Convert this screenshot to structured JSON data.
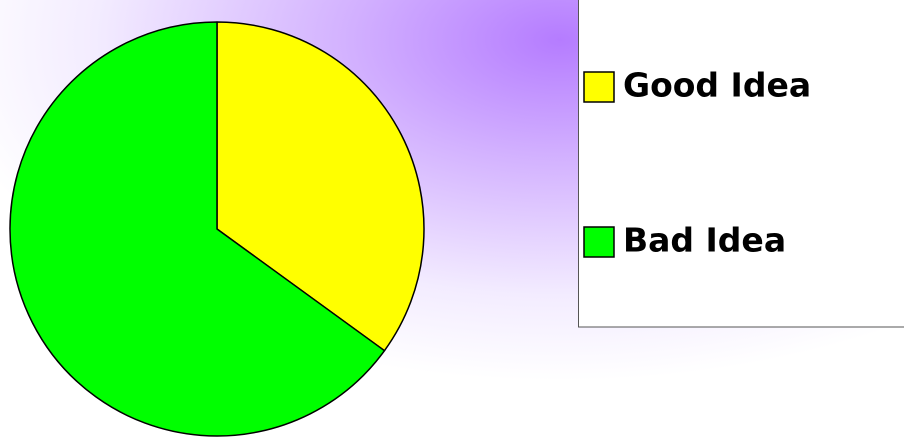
{
  "chart_data": {
    "type": "pie",
    "categories": [
      "Good Idea",
      "Bad Idea"
    ],
    "values": [
      35,
      65
    ],
    "colors": [
      "#ffff00",
      "#00ff00"
    ],
    "start_angle": 0,
    "direction": "clockwise",
    "legend": "right"
  }
}
